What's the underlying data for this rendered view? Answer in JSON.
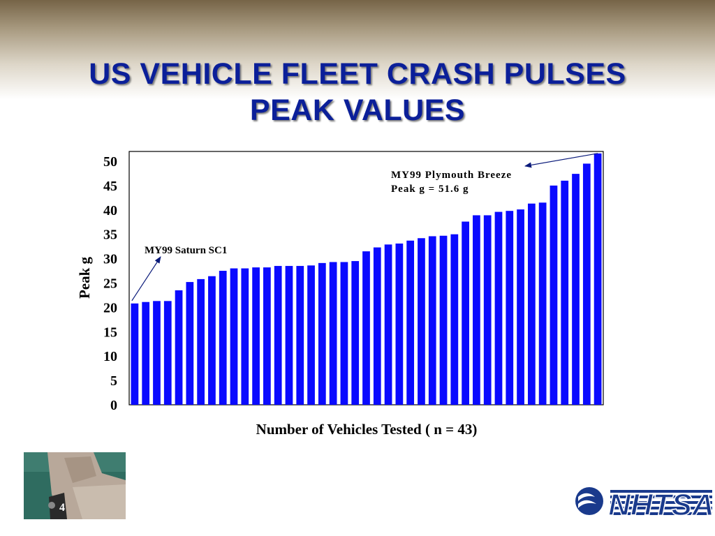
{
  "slide": {
    "title_line1": "US VEHICLE FLEET CRASH PULSES",
    "title_line2": "PEAK VALUES",
    "page_number": "4",
    "logo_text": "NHTSA"
  },
  "chart_data": {
    "type": "bar",
    "xlabel": "Number of Vehicles Tested ( n = 43)",
    "ylabel": "Peak g",
    "ylim": [
      0,
      52
    ],
    "yticks": [
      0,
      5,
      10,
      15,
      20,
      25,
      30,
      35,
      40,
      45,
      50
    ],
    "grid": false,
    "values": [
      20.8,
      21.1,
      21.3,
      21.3,
      23.5,
      25.2,
      25.8,
      26.4,
      27.5,
      28.0,
      28.0,
      28.2,
      28.2,
      28.5,
      28.5,
      28.5,
      28.6,
      29.1,
      29.3,
      29.3,
      29.5,
      31.5,
      32.3,
      32.9,
      33.1,
      33.7,
      34.2,
      34.6,
      34.7,
      35.0,
      37.6,
      38.9,
      38.9,
      39.6,
      39.8,
      40.1,
      41.3,
      41.5,
      45.0,
      46.0,
      47.4,
      49.5,
      51.6
    ],
    "bar_color": "#0a0aff",
    "annotations": [
      {
        "lines": [
          "MY99 Saturn SC1"
        ],
        "target_index": 0
      },
      {
        "lines": [
          "MY99 Plymouth Breeze",
          "Peak g = 51.6 g"
        ],
        "target_index": 42
      }
    ]
  },
  "colors": {
    "title": "#0b1f99",
    "annotation_arrow": "#0a1a7a",
    "logo": "#1a3a8c"
  }
}
